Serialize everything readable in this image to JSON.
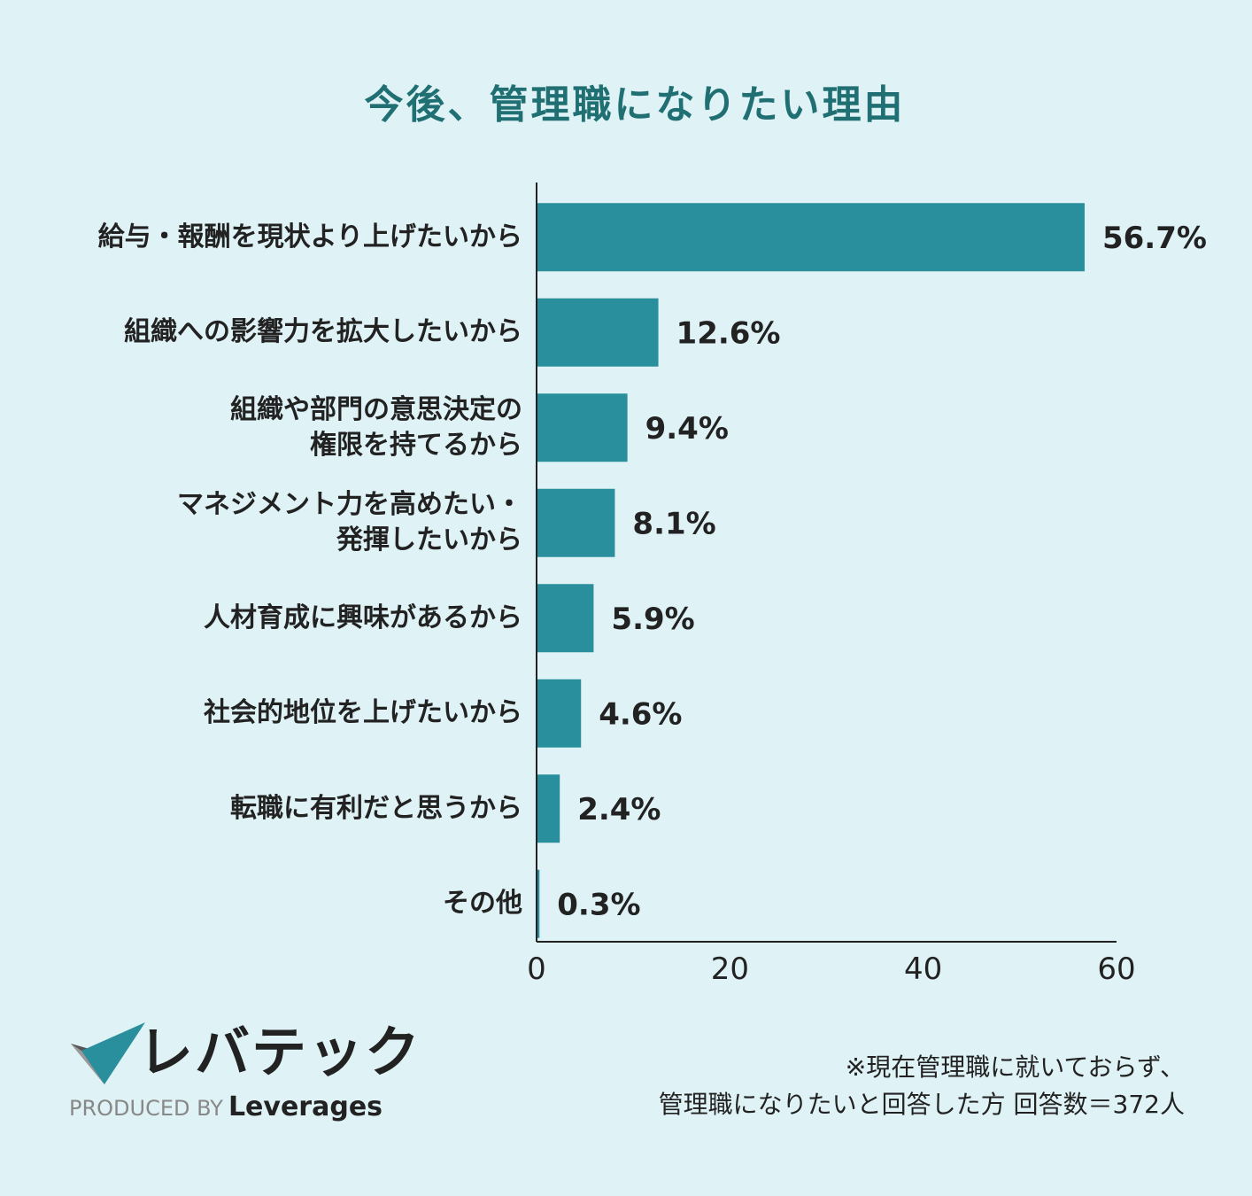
{
  "chart_data": {
    "type": "bar",
    "orientation": "horizontal",
    "title": "今後、管理職になりたい理由",
    "categories": [
      "給与・報酬を現状より上げたいから",
      "組織への影響力を拡大したいから",
      "組織や部門の意思決定の\n権限を持てるから",
      "マネジメント力を高めたい・\n発揮したいから",
      "人材育成に興味があるから",
      "社会的地位を上げたいから",
      "転職に有利だと思うから",
      "その他"
    ],
    "values": [
      56.7,
      12.6,
      9.4,
      8.1,
      5.9,
      4.6,
      2.4,
      0.3
    ],
    "value_labels": [
      "56.7%",
      "12.6%",
      "9.4%",
      "8.1%",
      "5.9%",
      "4.6%",
      "2.4%",
      "0.3%"
    ],
    "xlim": [
      0,
      60
    ],
    "xticks": [
      "0",
      "20",
      "40",
      "60"
    ],
    "bar_color": "#2a8f9c",
    "grid": false,
    "legend": "none"
  },
  "brand": {
    "name": "レバテック",
    "produced_by": "PRODUCED BY",
    "company": "Leverages"
  },
  "note": {
    "line1": "※現在管理職に就いておらず、",
    "line2": "管理職になりたいと回答した方 回答数＝372人"
  },
  "colors": {
    "background": "#dff2f5",
    "title": "#1f6f73",
    "bar": "#2a8f9c",
    "logo_dark": "#555555",
    "logo_teal": "#2a8f9c"
  }
}
